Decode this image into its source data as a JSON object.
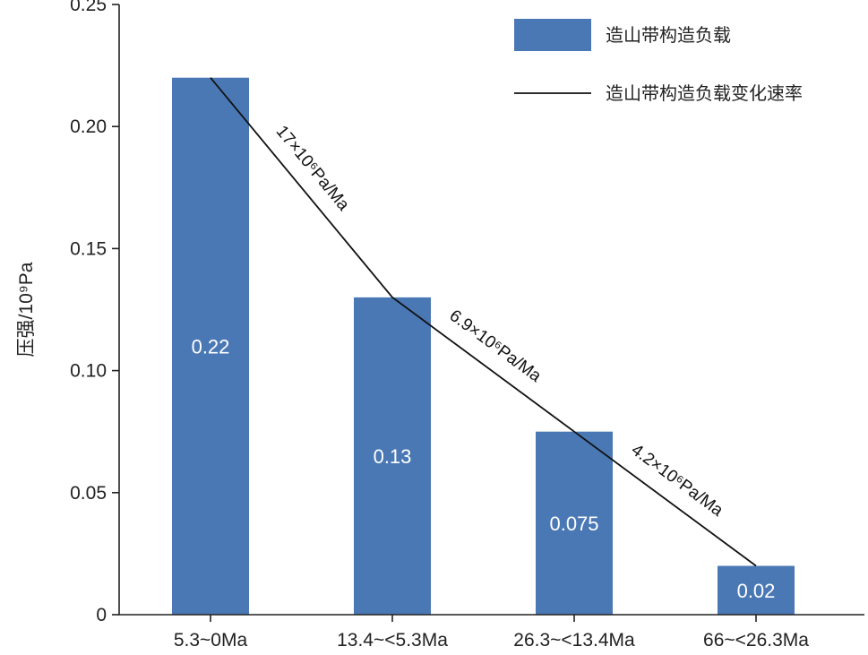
{
  "chart_data": {
    "type": "bar",
    "categories": [
      "5.3~0Ma",
      "13.4~<5.3Ma",
      "26.3~<13.4Ma",
      "66~<26.3Ma"
    ],
    "values": [
      0.22,
      0.13,
      0.075,
      0.02
    ],
    "value_labels": [
      "0.22",
      "0.13",
      "0.075",
      "0.02"
    ],
    "ylabel": "压强/10⁹Pa",
    "ylim": [
      0,
      0.25
    ],
    "yticks": [
      0,
      0.05,
      0.1,
      0.15,
      0.2,
      0.25
    ],
    "ytick_labels": [
      "0",
      "0.05",
      "0.10",
      "0.15",
      "0.20",
      "0.25"
    ],
    "bar_color": "#4a78b4",
    "line_color": "#111111",
    "legend": {
      "position": "top-right",
      "entries": [
        "造山带构造负载",
        "造山带构造负载变化速率"
      ]
    },
    "rates": [
      {
        "label": "17×10⁶Pa/Ma"
      },
      {
        "label": "6.9×10⁶Pa/Ma"
      },
      {
        "label": "4.2×10⁶Pa/Ma"
      }
    ],
    "grid": false
  }
}
